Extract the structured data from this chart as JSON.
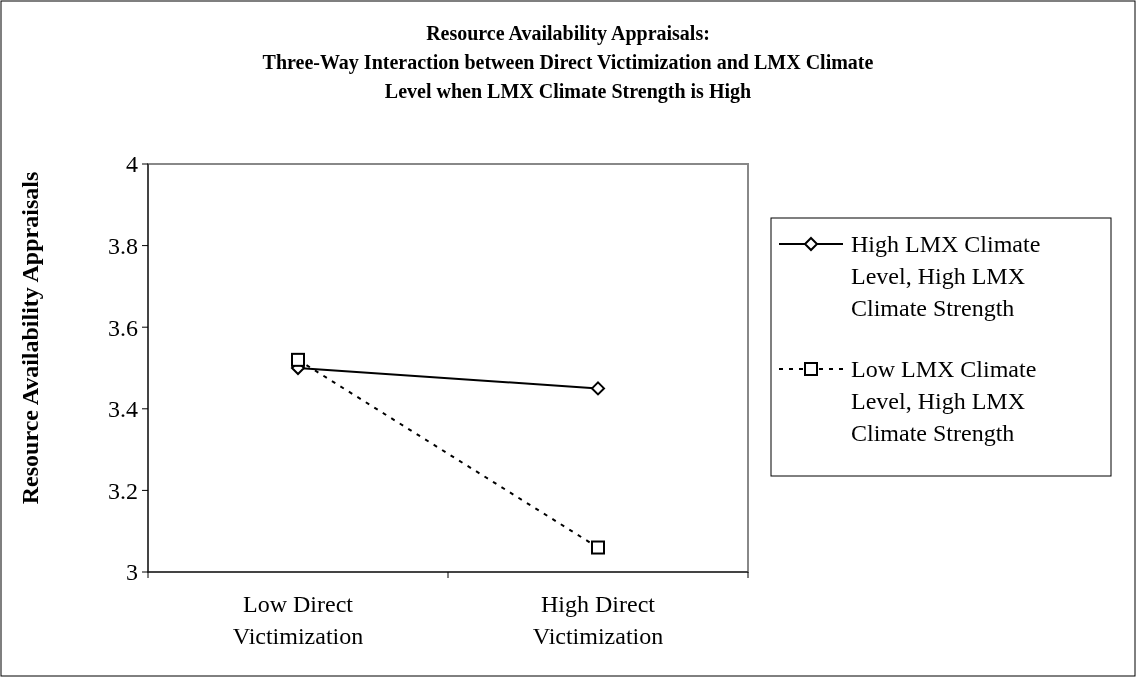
{
  "chart_data": {
    "type": "line",
    "title": "Resource Availability Appraisals:\nThree-Way Interaction between Direct Victimization and LMX Climate\nLevel when LMX Climate Strength is High",
    "ylabel": "Resource Availability Appraisals",
    "categories": [
      "Low Direct\nVictimization",
      "High Direct\nVictimization"
    ],
    "series": [
      {
        "name": "High LMX Climate Level, High LMX Climate Strength",
        "color": "#000000",
        "values": [
          3.5,
          3.45
        ],
        "marker": "diamond",
        "line_style": "solid"
      },
      {
        "name": "Low LMX Climate Level, High LMX Climate Strength",
        "color": "#000000",
        "values": [
          3.52,
          3.06
        ],
        "marker": "square",
        "line_style": "dotted"
      }
    ],
    "ylim": [
      3,
      4
    ],
    "yticks": [
      3,
      3.2,
      3.4,
      3.6,
      3.8,
      4
    ],
    "grid": false,
    "legend": "right"
  }
}
